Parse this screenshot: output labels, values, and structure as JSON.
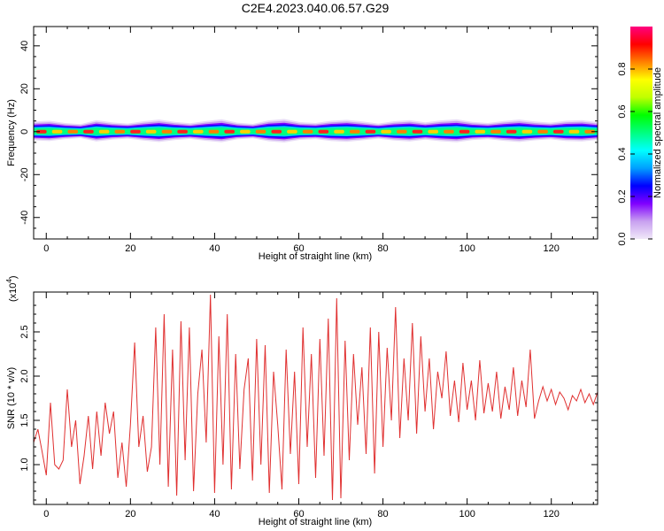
{
  "figure": {
    "title": "C2E4.2023.040.06.57.G29"
  },
  "chart_data": [
    {
      "type": "heatmap",
      "title": "C2E4.2023.040.06.57.G29",
      "xlabel": "Height of straight line (km)",
      "ylabel": "Frequency (Hz)",
      "xlim": [
        -3,
        131
      ],
      "ylim": [
        -50,
        49
      ],
      "xticks": [
        0,
        20,
        40,
        60,
        80,
        100,
        120
      ],
      "yticks": [
        -40,
        -20,
        0,
        20,
        40
      ],
      "ytick_labels": [
        "-40",
        "-20",
        "0",
        "20",
        "40"
      ],
      "colorbar": {
        "label": "Normalized spectral amplitude",
        "range": [
          0.0,
          1.0
        ],
        "ticks": [
          0.0,
          0.2,
          0.4,
          0.6,
          0.8
        ],
        "tick_labels": [
          "0.0",
          "0.2",
          "0.4",
          "0.6",
          "0.8"
        ],
        "colormap": [
          "#f0e8f8",
          "#c8a0f0",
          "#8000ff",
          "#0000ff",
          "#00a0ff",
          "#00ffff",
          "#00ff80",
          "#00ff00",
          "#c0ff00",
          "#ffff00",
          "#ff8000",
          "#ff0000",
          "#ff0080"
        ]
      },
      "band_halfwidth_hz": [
        3.5,
        3.8,
        3.0,
        2.6,
        4.0,
        3.2,
        2.8,
        3.6,
        4.2,
        3.4,
        2.9,
        3.7,
        4.3,
        3.1,
        2.7,
        3.9,
        4.4,
        3.3,
        3.0,
        3.8,
        4.1,
        3.5,
        2.8,
        3.6,
        4.0,
        3.2,
        3.9,
        4.3,
        3.4,
        3.0,
        3.7,
        4.2,
        3.5,
        3.1,
        3.8,
        4.0,
        3.3
      ],
      "peak_frequency_hz": 0,
      "grid": false
    },
    {
      "type": "line",
      "xlabel": "Height of straight line (km)",
      "ylabel": "SNR (10 * v/v)",
      "scale_label_main": "(x10",
      "scale_label_exp": "4",
      "scale_label_close": ")",
      "xlim": [
        -3,
        131
      ],
      "ylim": [
        0.55,
        2.95
      ],
      "xticks": [
        0,
        20,
        40,
        60,
        80,
        100,
        120
      ],
      "yticks": [
        1.0,
        1.5,
        2.0,
        2.5
      ],
      "ytick_labels": [
        "1.0",
        "1.5",
        "2.0",
        "2.5"
      ],
      "color": "#e03030",
      "grid": false,
      "series": [
        {
          "x": [
            -3,
            -2,
            -1,
            0,
            1,
            2,
            3,
            4,
            5,
            6,
            7,
            8,
            9,
            10,
            11,
            12,
            13,
            14,
            15,
            16,
            17,
            18,
            19,
            20,
            21,
            22,
            23,
            24,
            25,
            26,
            27,
            28,
            29,
            30,
            31,
            32,
            33,
            34,
            35,
            36,
            37,
            38,
            39,
            40,
            41,
            42,
            43,
            44,
            45,
            46,
            47,
            48,
            49,
            50,
            51,
            52,
            53,
            54,
            55,
            56,
            57,
            58,
            59,
            60,
            61,
            62,
            63,
            64,
            65,
            66,
            67,
            68,
            69,
            70,
            71,
            72,
            73,
            74,
            75,
            76,
            77,
            78,
            79,
            80,
            81,
            82,
            83,
            84,
            85,
            86,
            87,
            88,
            89,
            90,
            91,
            92,
            93,
            94,
            95,
            96,
            97,
            98,
            99,
            100,
            101,
            102,
            103,
            104,
            105,
            106,
            107,
            108,
            109,
            110,
            111,
            112,
            113,
            114,
            115,
            116,
            117,
            118,
            119,
            120,
            121,
            122,
            123,
            124,
            125,
            126,
            127,
            128,
            129,
            130,
            131
          ],
          "y": [
            1.25,
            1.4,
            1.15,
            0.88,
            1.7,
            1.0,
            0.95,
            1.05,
            1.85,
            1.2,
            1.5,
            0.78,
            1.1,
            1.55,
            0.95,
            1.6,
            1.1,
            1.7,
            1.35,
            1.6,
            0.85,
            1.25,
            0.75,
            1.45,
            2.38,
            1.2,
            1.55,
            0.92,
            1.2,
            2.55,
            1.0,
            2.7,
            0.75,
            2.3,
            0.65,
            2.62,
            1.05,
            2.55,
            0.7,
            1.8,
            2.3,
            1.25,
            2.92,
            0.68,
            2.45,
            1.0,
            2.7,
            0.72,
            2.25,
            0.95,
            1.85,
            2.2,
            0.82,
            2.42,
            1.0,
            2.35,
            0.68,
            2.05,
            1.45,
            0.72,
            2.3,
            1.12,
            2.05,
            0.78,
            2.55,
            1.2,
            2.25,
            0.85,
            2.42,
            1.1,
            2.65,
            0.6,
            2.88,
            0.62,
            2.4,
            1.05,
            2.25,
            1.45,
            2.1,
            1.12,
            2.55,
            0.9,
            2.5,
            1.2,
            2.32,
            1.5,
            2.78,
            1.3,
            2.2,
            1.5,
            2.6,
            1.35,
            2.45,
            1.6,
            2.2,
            1.4,
            2.05,
            1.75,
            2.28,
            1.55,
            1.95,
            1.48,
            2.15,
            1.62,
            1.95,
            1.5,
            2.18,
            1.58,
            1.92,
            1.6,
            2.05,
            1.52,
            1.88,
            1.62,
            2.1,
            1.55,
            1.95,
            1.65,
            2.3,
            1.52,
            1.72,
            1.88,
            1.72,
            1.85,
            1.68,
            1.82,
            1.75,
            1.62,
            1.78,
            1.72,
            1.85,
            1.7,
            1.8,
            1.68,
            1.82
          ]
        }
      ]
    }
  ]
}
